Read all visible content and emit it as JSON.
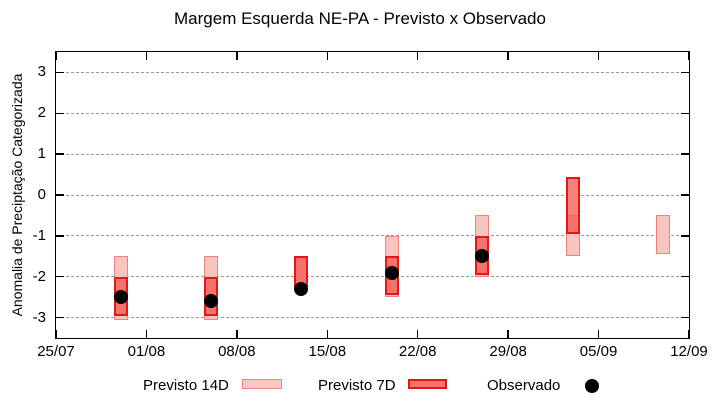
{
  "chart_data": {
    "type": "bar",
    "subtype": "floating-range-boxes-with-points",
    "title": "Margem Esquerda NE-PA - Previsto x Observado",
    "ylabel": "Anomalia de Preciptação Categorizada",
    "ylim": [
      -3.5,
      3.5
    ],
    "yticks": [
      -3,
      -2,
      -1,
      0,
      1,
      2,
      3
    ],
    "grid": true,
    "x_axis": {
      "tick_labels": [
        "25/07",
        "01/08",
        "08/08",
        "15/08",
        "22/08",
        "29/08",
        "05/09",
        "12/09"
      ],
      "tick_days": [
        0,
        7,
        14,
        21,
        28,
        35,
        42,
        49
      ],
      "span_days": 49
    },
    "series": [
      {
        "name": "Previsto 14D",
        "type": "range-box",
        "style": "light-pink"
      },
      {
        "name": "Previsto 7D",
        "type": "range-box",
        "style": "red"
      },
      {
        "name": "Observado",
        "type": "point",
        "style": "black-dot"
      }
    ],
    "points": [
      {
        "date": "30/07",
        "day": 5,
        "previsto14d": [
          -3.05,
          -1.5
        ],
        "previsto7d": [
          -2.95,
          -2.0
        ],
        "observado": -2.5
      },
      {
        "date": "06/08",
        "day": 12,
        "previsto14d": [
          -3.05,
          -1.5
        ],
        "previsto7d": [
          -2.95,
          -2.0
        ],
        "observado": -2.6
      },
      {
        "date": "13/08",
        "day": 19,
        "previsto14d": [
          -2.25,
          -1.5
        ],
        "previsto7d": [
          -2.25,
          -1.5
        ],
        "observado": -2.3
      },
      {
        "date": "20/08",
        "day": 26,
        "previsto14d": [
          -2.5,
          -1.0
        ],
        "previsto7d": [
          -2.45,
          -1.5
        ],
        "observado": -1.9
      },
      {
        "date": "27/08",
        "day": 33,
        "previsto14d": [
          -2.0,
          -0.5
        ],
        "previsto7d": [
          -1.95,
          -1.0
        ],
        "observado": -1.5
      },
      {
        "date": "03/09",
        "day": 40,
        "previsto14d": [
          -1.5,
          -0.5
        ],
        "previsto7d": [
          -0.95,
          0.45
        ],
        "observado": null
      },
      {
        "date": "10/09",
        "day": 47,
        "previsto14d": [
          -1.45,
          -0.5
        ],
        "previsto7d": null,
        "observado": null
      }
    ],
    "legend": {
      "position": "below",
      "items": [
        {
          "label": "Previsto 14D",
          "swatch": "box-light"
        },
        {
          "label": "Previsto 7D",
          "swatch": "box-dark"
        },
        {
          "label": "Observado",
          "swatch": "dot"
        }
      ]
    },
    "colors": {
      "p14_fill": "rgba(240,60,50,0.30)",
      "p14_border": "#f0837b",
      "p14_legend_fill": "#f9c6c2",
      "p7_fill": "rgba(247,87,79,0.75)",
      "p7_border": "#e41616",
      "p7_legend_fill": "#f4736b",
      "observado": "#000000",
      "grid": "#999999",
      "axis": "#000000"
    }
  }
}
